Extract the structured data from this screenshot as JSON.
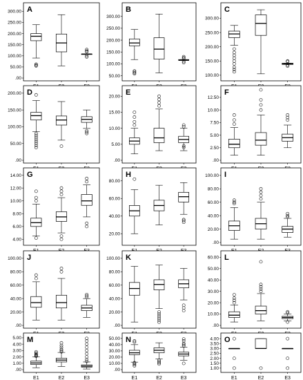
{
  "chart_data": [
    {
      "type": "box",
      "label": "A",
      "categories": [
        "E1",
        "E2",
        "E3"
      ],
      "yticks": [
        ".00",
        "50.00",
        "100.00",
        "150.00",
        "200.00",
        "250.00",
        "300.00"
      ],
      "ylim": [
        0,
        320
      ],
      "boxes": [
        {
          "min": 90,
          "q1": 168,
          "median": 188,
          "q3": 200,
          "max": 240,
          "outliers": [
            55,
            58,
            62
          ]
        },
        {
          "min": 55,
          "q1": 118,
          "median": 158,
          "q3": 198,
          "max": 285,
          "outliers": []
        },
        {
          "min": 108,
          "q1": 108,
          "median": 108,
          "q3": 108,
          "max": 108,
          "outliers": [
            95,
            100,
            118,
            122,
            128
          ]
        }
      ]
    },
    {
      "type": "box",
      "label": "B",
      "categories": [
        "E1",
        "E2",
        "E3"
      ],
      "yticks": [
        "50.00",
        "100.00",
        "150.00",
        "200.00",
        "250.00",
        "300.00"
      ],
      "ylim": [
        40,
        340
      ],
      "boxes": [
        {
          "min": 118,
          "q1": 176,
          "median": 188,
          "q3": 205,
          "max": 245,
          "outliers": [
            58,
            62,
            66,
            70
          ]
        },
        {
          "min": 62,
          "q1": 120,
          "median": 162,
          "q3": 210,
          "max": 310,
          "outliers": []
        },
        {
          "min": 115,
          "q1": 115,
          "median": 115,
          "q3": 118,
          "max": 118,
          "outliers": [
            105,
            110,
            122,
            126,
            130
          ]
        }
      ]
    },
    {
      "type": "box",
      "label": "C",
      "categories": [
        "E1",
        "E2",
        "E3"
      ],
      "yticks": [
        "100.00",
        "150.00",
        "200.00",
        "250.00",
        "300.00"
      ],
      "ylim": [
        90,
        340
      ],
      "boxes": [
        {
          "min": 205,
          "q1": 232,
          "median": 245,
          "q3": 255,
          "max": 275,
          "outliers": [
            112,
            120,
            128,
            140,
            150,
            160,
            170,
            180,
            192
          ]
        },
        {
          "min": 105,
          "q1": 240,
          "median": 282,
          "q3": 312,
          "max": 330,
          "outliers": []
        },
        {
          "min": 138,
          "q1": 138,
          "median": 140,
          "q3": 142,
          "max": 142,
          "outliers": [
            132,
            135,
            148,
            150
          ]
        }
      ]
    },
    {
      "type": "box",
      "label": "D",
      "categories": [
        "E1",
        "E2",
        "E3"
      ],
      "yticks": [
        ".00",
        "50.00",
        "100.00",
        "150.00",
        "200.00"
      ],
      "ylim": [
        0,
        210
      ],
      "boxes": [
        {
          "min": 85,
          "q1": 120,
          "median": 133,
          "q3": 143,
          "max": 178,
          "outliers": [
            38,
            44,
            50,
            56,
            62,
            68,
            74,
            80,
            195
          ]
        },
        {
          "min": 60,
          "q1": 105,
          "median": 120,
          "q3": 132,
          "max": 175,
          "outliers": [
            42
          ]
        },
        {
          "min": 95,
          "q1": 113,
          "median": 122,
          "q3": 130,
          "max": 150,
          "outliers": [
            80,
            84,
            88
          ]
        }
      ]
    },
    {
      "type": "box",
      "label": "E",
      "categories": [
        "E1",
        "E2",
        "E3"
      ],
      "yticks": [
        ".00",
        "5.00",
        "10.00",
        "15.00",
        "20.00"
      ],
      "ylim": [
        0,
        22
      ],
      "boxes": [
        {
          "min": 2,
          "q1": 5,
          "median": 6,
          "q3": 7,
          "max": 10,
          "outliers": [
            11,
            12,
            13.5,
            15
          ]
        },
        {
          "min": 3,
          "q1": 5.5,
          "median": 7,
          "q3": 10,
          "max": 16,
          "outliers": [
            17,
            18,
            19,
            20
          ]
        },
        {
          "min": 3,
          "q1": 5.5,
          "median": 6.5,
          "q3": 7.5,
          "max": 10,
          "outliers": [
            4,
            4.5,
            10.5,
            11
          ]
        }
      ]
    },
    {
      "type": "box",
      "label": "F",
      "categories": [
        "E1",
        "E2",
        "E3"
      ],
      "yticks": [
        ".00",
        "2.50",
        "5.00",
        "7.50",
        "10.00",
        "12.50"
      ],
      "ylim": [
        0,
        14
      ],
      "boxes": [
        {
          "min": 1,
          "q1": 2.5,
          "median": 3.2,
          "q3": 4.2,
          "max": 6.5,
          "outliers": [
            7.2,
            8,
            9
          ]
        },
        {
          "min": 1,
          "q1": 3,
          "median": 4,
          "q3": 5.5,
          "max": 9,
          "outliers": [
            10,
            11,
            12,
            14
          ]
        },
        {
          "min": 2.5,
          "q1": 3.8,
          "median": 4.5,
          "q3": 5.2,
          "max": 7,
          "outliers": [
            8,
            8.5,
            9
          ]
        }
      ]
    },
    {
      "type": "box",
      "label": "G",
      "categories": [
        "E1",
        "E2",
        "E3"
      ],
      "yticks": [
        "4.00",
        "6.00",
        "8.00",
        "10.00",
        "12.00",
        "14.00"
      ],
      "ylim": [
        3.5,
        14.5
      ],
      "boxes": [
        {
          "min": 4.5,
          "q1": 6,
          "median": 6.6,
          "q3": 7.3,
          "max": 9.5,
          "outliers": [
            4.2,
            10,
            10.5,
            11.5
          ]
        },
        {
          "min": 5,
          "q1": 6.8,
          "median": 7.5,
          "q3": 8.3,
          "max": 10.5,
          "outliers": [
            4,
            4.5,
            11,
            11.5,
            12
          ]
        },
        {
          "min": 7.5,
          "q1": 9.3,
          "median": 10,
          "q3": 11,
          "max": 12.5,
          "outliers": [
            6,
            6.5,
            13,
            13.5
          ]
        }
      ]
    },
    {
      "type": "box",
      "label": "H",
      "categories": [
        "E1",
        "E2",
        "E3"
      ],
      "yticks": [
        "20.00",
        "40.00",
        "60.00",
        "80.00"
      ],
      "ylim": [
        10,
        90
      ],
      "boxes": [
        {
          "min": 20,
          "q1": 40,
          "median": 46,
          "q3": 52,
          "max": 70,
          "outliers": [
            82
          ]
        },
        {
          "min": 30,
          "q1": 46,
          "median": 52,
          "q3": 58,
          "max": 75,
          "outliers": []
        },
        {
          "min": 42,
          "q1": 56,
          "median": 62,
          "q3": 67,
          "max": 78,
          "outliers": [
            33,
            35,
            36
          ]
        }
      ]
    },
    {
      "type": "box",
      "label": "I",
      "categories": [
        "E1",
        "E2",
        "E3"
      ],
      "yticks": [
        ".00",
        "20.00",
        "40.00",
        "60.00",
        "80.00",
        "100.00"
      ],
      "ylim": [
        0,
        105
      ],
      "boxes": [
        {
          "min": 5,
          "q1": 18,
          "median": 25,
          "q3": 32,
          "max": 52,
          "outliers": [
            58,
            60,
            63
          ]
        },
        {
          "min": 5,
          "q1": 20,
          "median": 28,
          "q3": 36,
          "max": 60,
          "outliers": [
            65,
            70,
            75,
            80
          ]
        },
        {
          "min": 8,
          "q1": 15,
          "median": 20,
          "q3": 24,
          "max": 36,
          "outliers": [
            38,
            40,
            43
          ]
        }
      ]
    },
    {
      "type": "box",
      "label": "J",
      "categories": [
        "E1",
        "E2",
        "E3"
      ],
      "yticks": [
        ".00",
        "20.00",
        "40.00",
        "60.00",
        "80.00",
        "100.00"
      ],
      "ylim": [
        0,
        105
      ],
      "boxes": [
        {
          "min": 8,
          "q1": 27,
          "median": 34,
          "q3": 43,
          "max": 65,
          "outliers": [
            70,
            75
          ]
        },
        {
          "min": 8,
          "q1": 26,
          "median": 34,
          "q3": 45,
          "max": 70,
          "outliers": [
            80,
            85
          ]
        },
        {
          "min": 12,
          "q1": 22,
          "median": 26,
          "q3": 30,
          "max": 40,
          "outliers": [
            42,
            44,
            46
          ]
        }
      ]
    },
    {
      "type": "box",
      "label": "K",
      "categories": [
        "E1",
        "E2",
        "E3"
      ],
      "yticks": [
        ".00",
        "20.00",
        "40.00",
        "60.00",
        "80.00",
        "100.00"
      ],
      "ylim": [
        0,
        105
      ],
      "boxes": [
        {
          "min": 5,
          "q1": 45,
          "median": 55,
          "q3": 64,
          "max": 88,
          "outliers": []
        },
        {
          "min": 25,
          "q1": 53,
          "median": 61,
          "q3": 68,
          "max": 90,
          "outliers": [
            5,
            8,
            11,
            14,
            17,
            20
          ]
        },
        {
          "min": 38,
          "q1": 56,
          "median": 62,
          "q3": 68,
          "max": 85,
          "outliers": [
            22,
            26,
            30
          ]
        }
      ]
    },
    {
      "type": "box",
      "label": "L",
      "categories": [
        "E1",
        "E2",
        "E3"
      ],
      "yticks": [
        ".00",
        "10.00",
        "20.00",
        "30.00",
        "40.00",
        "50.00",
        "60.00"
      ],
      "ylim": [
        0,
        62
      ],
      "boxes": [
        {
          "min": 3,
          "q1": 7,
          "median": 9,
          "q3": 12,
          "max": 18,
          "outliers": [
            20,
            22,
            24,
            27
          ]
        },
        {
          "min": 4,
          "q1": 10,
          "median": 13,
          "q3": 17,
          "max": 28,
          "outliers": [
            30,
            32,
            34,
            36,
            56
          ]
        },
        {
          "min": 4,
          "q1": 6,
          "median": 7,
          "q3": 8,
          "max": 10,
          "outliers": [
            11,
            12,
            3
          ]
        }
      ]
    },
    {
      "type": "box",
      "label": "M",
      "categories": [
        "E1",
        "E2",
        "E3"
      ],
      "yticks": [
        ".00",
        "1.00",
        "2.00",
        "3.00",
        "4.00",
        "5.00"
      ],
      "ylim": [
        0,
        5.1
      ],
      "boxes": [
        {
          "min": 0.3,
          "q1": 0.8,
          "median": 1.05,
          "q3": 1.35,
          "max": 2.0,
          "outliers": [
            2.1,
            2.2,
            2.3,
            2.4,
            2.6,
            2.8
          ]
        },
        {
          "min": 0.5,
          "q1": 1.2,
          "median": 1.5,
          "q3": 1.8,
          "max": 2.7,
          "outliers": [
            2.8,
            3.0,
            3.2,
            3.5,
            3.8,
            4.2
          ]
        },
        {
          "min": 0.1,
          "q1": 0.4,
          "median": 0.55,
          "q3": 0.75,
          "max": 1.2,
          "outliers": [
            1.3,
            1.6,
            2.0,
            2.5,
            3.0,
            3.5,
            4.0,
            4.5,
            4.9
          ]
        }
      ]
    },
    {
      "type": "box",
      "label": "N",
      "categories": [
        "E1",
        "E2",
        "E3"
      ],
      "yticks": [
        ".00",
        "10.00",
        "20.00",
        "30.00",
        "40.00",
        "50.00"
      ],
      "ylim": [
        0,
        52
      ],
      "boxes": [
        {
          "min": 12,
          "q1": 24,
          "median": 27,
          "q3": 31,
          "max": 40,
          "outliers": [
            6,
            8,
            10,
            11,
            44,
            46
          ]
        },
        {
          "min": 17,
          "q1": 27,
          "median": 31,
          "q3": 35,
          "max": 43,
          "outliers": [
            9,
            11,
            13,
            15
          ]
        },
        {
          "min": 15,
          "q1": 22,
          "median": 25,
          "q3": 28,
          "max": 36,
          "outliers": [
            10,
            38,
            40,
            42,
            46,
            49
          ]
        }
      ]
    },
    {
      "type": "box",
      "label": "O",
      "categories": [
        "E1",
        "E2",
        "E3"
      ],
      "yticks": [
        "1.00",
        "1.50",
        "2.00",
        "2.50",
        "3.00",
        "3.50",
        "4.00"
      ],
      "ylim": [
        0.85,
        4.15
      ],
      "boxes": [
        {
          "min": 3,
          "q1": 3,
          "median": 3,
          "q3": 3,
          "max": 3,
          "outliers": [
            1,
            2,
            4
          ]
        },
        {
          "min": 3,
          "q1": 3,
          "median": 3,
          "q3": 4,
          "max": 4,
          "outliers": [
            1
          ]
        },
        {
          "min": 3,
          "q1": 3,
          "median": 3,
          "q3": 3,
          "max": 3,
          "outliers": [
            1,
            2,
            4
          ]
        }
      ]
    }
  ]
}
